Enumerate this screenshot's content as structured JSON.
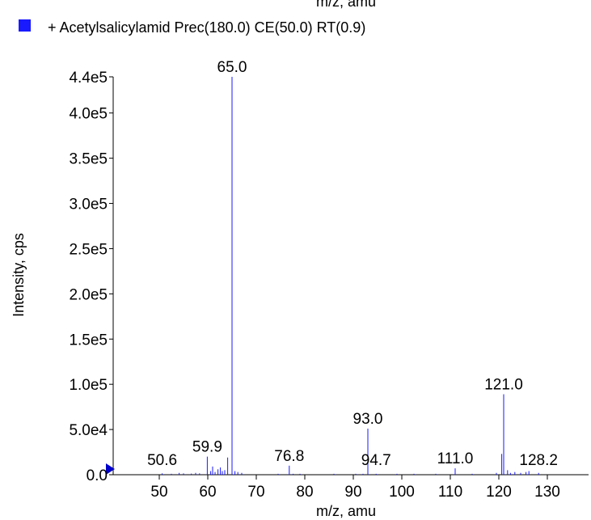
{
  "cropped_top_text": "m/z, amu",
  "legend": {
    "label": "+ Acetylsalicylamid Prec(180.0) CE(50.0) RT(0.9)",
    "swatch_color": "#1a1aff"
  },
  "colors": {
    "series": "#1a1aff",
    "axis": "#000000",
    "marker": "#0000cc"
  },
  "chart_data": {
    "type": "bar",
    "title": "",
    "xlabel": "m/z, amu",
    "ylabel": "Intensity, cps",
    "xlim": [
      40,
      138
    ],
    "ylim": [
      0,
      440000
    ],
    "x_ticks": [
      50,
      60,
      70,
      80,
      90,
      100,
      110,
      120,
      130
    ],
    "y_ticks": [
      {
        "value": 0,
        "label": "0.0"
      },
      {
        "value": 50000,
        "label": "5.0e4"
      },
      {
        "value": 100000,
        "label": "1.0e5"
      },
      {
        "value": 150000,
        "label": "1.5e5"
      },
      {
        "value": 200000,
        "label": "2.0e5"
      },
      {
        "value": 250000,
        "label": "2.5e5"
      },
      {
        "value": 300000,
        "label": "3.0e5"
      },
      {
        "value": 350000,
        "label": "3.5e5"
      },
      {
        "value": 400000,
        "label": "4.0e5"
      },
      {
        "value": 440000,
        "label": "4.4e5"
      }
    ],
    "series": [
      {
        "name": "+ Acetylsalicylamid Prec(180.0) CE(50.0) RT(0.9)",
        "x": [
          50.6,
          52.5,
          54.1,
          55.0,
          56.6,
          57.5,
          58.3,
          59.9,
          60.6,
          61.0,
          61.5,
          62.1,
          62.6,
          63.0,
          63.5,
          64.1,
          65.0,
          65.6,
          66.2,
          67.0,
          74.5,
          76.8,
          77.6,
          79.0,
          86.0,
          90.5,
          92.0,
          93.0,
          94.7,
          99.0,
          102.5,
          107.0,
          111.0,
          114.5,
          119.5,
          120.6,
          121.0,
          121.8,
          122.4,
          123.3,
          124.5,
          125.6,
          126.2,
          128.2
        ],
        "values": [
          1500,
          1000,
          2000,
          1500,
          1200,
          2000,
          1500,
          20000,
          4000,
          9000,
          3000,
          6000,
          8000,
          4000,
          5000,
          19000,
          440000,
          4000,
          3000,
          2000,
          1000,
          10000,
          1000,
          1000,
          1000,
          1000,
          1000,
          51000,
          1000,
          1000,
          1000,
          1000,
          7000,
          1000,
          2000,
          23000,
          89000,
          5000,
          2000,
          3000,
          2000,
          3000,
          4000,
          2000
        ]
      }
    ],
    "peak_labels": [
      {
        "x": 50.6,
        "value": 1500,
        "label": "50.6"
      },
      {
        "x": 59.9,
        "value": 20000,
        "label": "59.9"
      },
      {
        "x": 65.0,
        "value": 440000,
        "label": "65.0"
      },
      {
        "x": 76.8,
        "value": 10000,
        "label": "76.8"
      },
      {
        "x": 93.0,
        "value": 51000,
        "label": "93.0"
      },
      {
        "x": 94.7,
        "value": 1000,
        "label": "94.7"
      },
      {
        "x": 111.0,
        "value": 7000,
        "label": "111.0"
      },
      {
        "x": 121.0,
        "value": 89000,
        "label": "121.0"
      },
      {
        "x": 128.2,
        "value": 2000,
        "label": "128.2"
      }
    ]
  }
}
